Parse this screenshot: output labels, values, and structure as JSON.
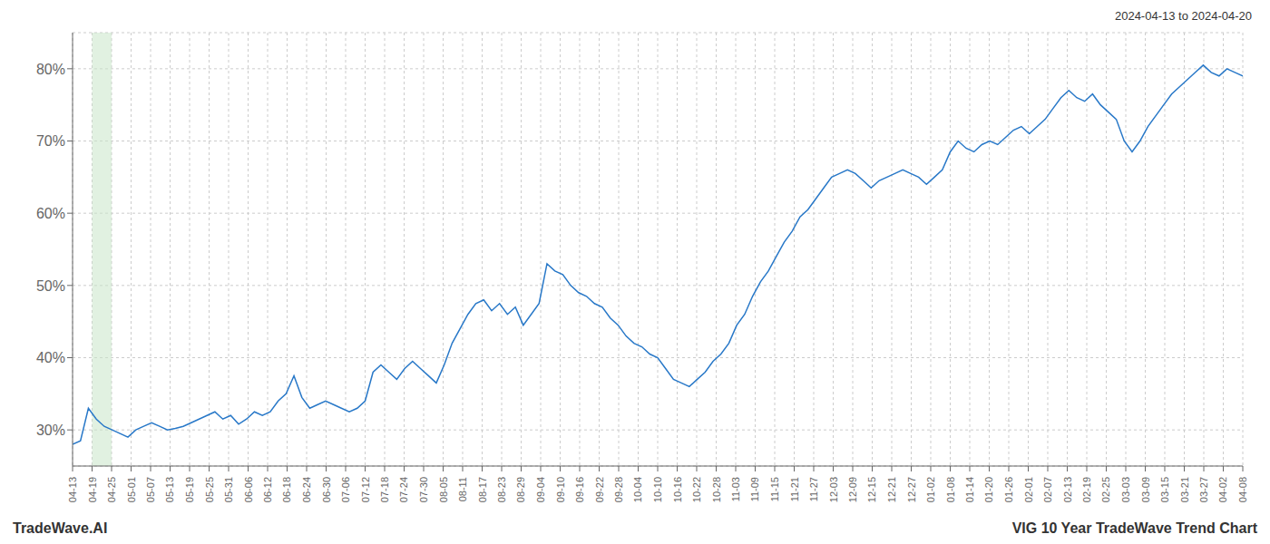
{
  "chart_data": {
    "type": "line",
    "title": "VIG 10 Year TradeWave Trend Chart",
    "annotations": [
      "2024-04-13 to 2024-04-20",
      "TradeWave.AI"
    ],
    "series": [
      {
        "name": "VIG",
        "color": "#2878c8",
        "values": [
          28.0,
          28.5,
          33.0,
          31.5,
          30.5,
          30.0,
          29.5,
          29.0,
          30.0,
          30.5,
          31.0,
          30.5,
          30.0,
          30.2,
          30.5,
          31.0,
          31.5,
          32.0,
          32.5,
          31.5,
          32.0,
          30.8,
          31.5,
          32.5,
          32.0,
          32.5,
          34.0,
          35.0,
          37.5,
          34.5,
          33.0,
          33.5,
          34.0,
          33.5,
          33.0,
          32.5,
          33.0,
          34.0,
          38.0,
          39.0,
          38.0,
          37.0,
          38.5,
          39.5,
          38.5,
          37.5,
          36.5,
          39.0,
          42.0,
          44.0,
          46.0,
          47.5,
          48.0,
          46.5,
          47.5,
          46.0,
          47.0,
          44.5,
          46.0,
          47.5,
          53.0,
          52.0,
          51.5,
          50.0,
          49.0,
          48.5,
          47.5,
          47.0,
          45.5,
          44.5,
          43.0,
          42.0,
          41.5,
          40.5,
          40.0,
          38.5,
          37.0,
          36.5,
          36.0,
          37.0,
          38.0,
          39.5,
          40.5,
          42.0,
          44.5,
          46.0,
          48.5,
          50.5,
          52.0,
          54.0,
          56.0,
          57.5,
          59.5,
          60.5,
          62.0,
          63.5,
          65.0,
          65.5,
          66.0,
          65.5,
          64.5,
          63.5,
          64.5,
          65.0,
          65.5,
          66.0,
          65.5,
          65.0,
          64.0,
          65.0,
          66.0,
          68.5,
          70.0,
          69.0,
          68.5,
          69.5,
          70.0,
          69.5,
          70.5,
          71.5,
          72.0,
          71.0,
          72.0,
          73.0,
          74.5,
          76.0,
          77.0,
          76.0,
          75.5,
          76.5,
          75.0,
          74.0,
          73.0,
          70.0,
          68.5,
          70.0,
          72.0,
          73.5,
          75.0,
          76.5,
          77.5,
          78.5,
          79.5,
          80.5,
          79.5,
          79.0,
          80.0,
          79.5,
          79.0
        ]
      }
    ],
    "x": [
      0,
      1,
      2,
      3,
      4,
      5,
      6,
      7,
      8,
      9,
      10,
      11,
      12,
      13,
      14,
      15,
      16,
      17,
      18,
      19,
      20,
      21,
      22,
      23,
      24,
      25,
      26,
      27,
      28,
      29,
      30,
      31,
      32,
      33,
      34,
      35,
      36,
      37,
      38,
      39,
      40,
      41,
      42,
      43,
      44,
      45,
      46,
      47,
      48,
      49,
      50,
      51,
      52,
      53,
      54,
      55,
      56,
      57,
      58,
      59,
      60,
      61,
      62,
      63,
      64,
      65,
      66,
      67,
      68,
      69,
      70,
      71,
      72,
      73,
      74,
      75,
      76,
      77,
      78,
      79,
      80,
      81,
      82,
      83,
      84,
      85,
      86,
      87,
      88,
      89,
      90,
      91,
      92,
      93,
      94,
      95,
      96,
      97,
      98,
      99,
      100,
      101,
      102,
      103,
      104,
      105,
      106,
      107,
      108,
      109,
      110,
      111,
      112,
      113,
      114,
      115,
      116,
      117,
      118,
      119,
      120,
      121,
      122,
      123,
      124,
      125,
      126,
      127,
      128,
      129,
      130,
      131,
      132,
      133,
      134,
      135,
      136,
      137,
      138,
      139,
      140,
      141,
      142,
      143,
      144,
      145,
      146,
      147,
      148
    ],
    "xlim": [
      0,
      148
    ],
    "xticks": [
      {
        "value": 0,
        "label": "04-13"
      },
      {
        "value": 2.4667,
        "label": "04-19"
      },
      {
        "value": 4.9333,
        "label": "04-25"
      },
      {
        "value": 7.4,
        "label": "05-01"
      },
      {
        "value": 9.8667,
        "label": "05-07"
      },
      {
        "value": 12.3333,
        "label": "05-13"
      },
      {
        "value": 14.8,
        "label": "05-19"
      },
      {
        "value": 17.2667,
        "label": "05-25"
      },
      {
        "value": 19.7333,
        "label": "05-31"
      },
      {
        "value": 22.2,
        "label": "06-06"
      },
      {
        "value": 24.6667,
        "label": "06-12"
      },
      {
        "value": 27.1333,
        "label": "06-18"
      },
      {
        "value": 29.6,
        "label": "06-24"
      },
      {
        "value": 32.0667,
        "label": "06-30"
      },
      {
        "value": 34.5333,
        "label": "07-06"
      },
      {
        "value": 37,
        "label": "07-12"
      },
      {
        "value": 39.4667,
        "label": "07-18"
      },
      {
        "value": 41.9333,
        "label": "07-24"
      },
      {
        "value": 44.4,
        "label": "07-30"
      },
      {
        "value": 46.8667,
        "label": "08-05"
      },
      {
        "value": 49.3333,
        "label": "08-11"
      },
      {
        "value": 51.8,
        "label": "08-17"
      },
      {
        "value": 54.2667,
        "label": "08-23"
      },
      {
        "value": 56.7333,
        "label": "08-29"
      },
      {
        "value": 59.2,
        "label": "09-04"
      },
      {
        "value": 61.6667,
        "label": "09-10"
      },
      {
        "value": 64.1333,
        "label": "09-16"
      },
      {
        "value": 66.6,
        "label": "09-22"
      },
      {
        "value": 69.0667,
        "label": "09-28"
      },
      {
        "value": 71.5333,
        "label": "10-04"
      },
      {
        "value": 74,
        "label": "10-10"
      },
      {
        "value": 76.4667,
        "label": "10-16"
      },
      {
        "value": 78.9333,
        "label": "10-22"
      },
      {
        "value": 81.4,
        "label": "10-28"
      },
      {
        "value": 83.8667,
        "label": "11-03"
      },
      {
        "value": 86.3333,
        "label": "11-09"
      },
      {
        "value": 88.8,
        "label": "11-15"
      },
      {
        "value": 91.2667,
        "label": "11-21"
      },
      {
        "value": 93.7333,
        "label": "11-27"
      },
      {
        "value": 96.2,
        "label": "12-03"
      },
      {
        "value": 98.6667,
        "label": "12-09"
      },
      {
        "value": 101.1333,
        "label": "12-15"
      },
      {
        "value": 103.6,
        "label": "12-21"
      },
      {
        "value": 106.0667,
        "label": "12-27"
      },
      {
        "value": 108.5333,
        "label": "01-02"
      },
      {
        "value": 111,
        "label": "01-08"
      },
      {
        "value": 113.4667,
        "label": "01-14"
      },
      {
        "value": 115.9333,
        "label": "01-20"
      },
      {
        "value": 118.4,
        "label": "01-26"
      },
      {
        "value": 120.8667,
        "label": "02-01"
      },
      {
        "value": 123.3333,
        "label": "02-07"
      },
      {
        "value": 125.8,
        "label": "02-13"
      },
      {
        "value": 128.2667,
        "label": "02-19"
      },
      {
        "value": 130.7333,
        "label": "02-25"
      },
      {
        "value": 133.2,
        "label": "03-03"
      },
      {
        "value": 135.6667,
        "label": "03-09"
      },
      {
        "value": 138.1333,
        "label": "03-15"
      },
      {
        "value": 140.6,
        "label": "03-21"
      },
      {
        "value": 143.0667,
        "label": "03-27"
      },
      {
        "value": 145.5333,
        "label": "04-02"
      },
      {
        "value": 148,
        "label": "04-08"
      }
    ],
    "ylim": [
      25,
      85
    ],
    "yticks": [
      {
        "value": 30,
        "label": "30%"
      },
      {
        "value": 40,
        "label": "40%"
      },
      {
        "value": 50,
        "label": "50%"
      },
      {
        "value": 60,
        "label": "60%"
      },
      {
        "value": 70,
        "label": "70%"
      },
      {
        "value": 80,
        "label": "80%"
      }
    ],
    "band": {
      "x": [
        2.4667,
        4.9333
      ],
      "color": "#c8e6c9"
    },
    "grid": true
  }
}
